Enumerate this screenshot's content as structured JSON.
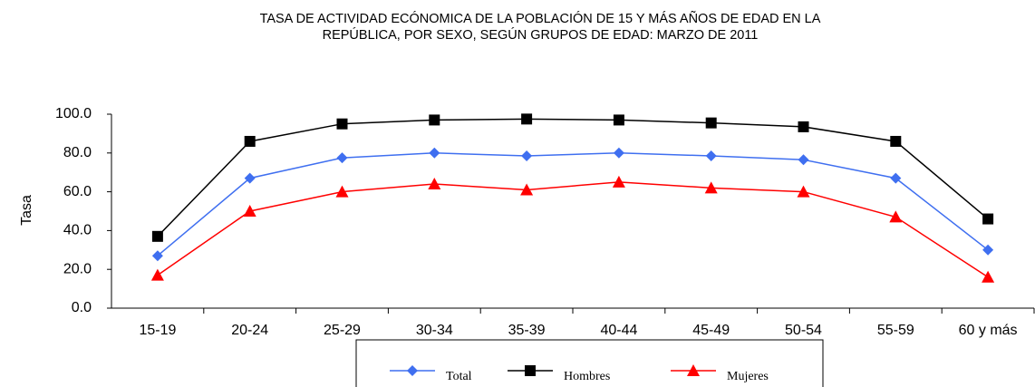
{
  "chart_data": {
    "type": "line",
    "title": "TASA DE ACTIVIDAD ECÓNOMICA DE LA POBLACIÓN DE 15 Y MÁS AÑOS DE EDAD EN LA",
    "subtitle": "REPÚBLICA, POR SEXO, SEGÚN GRUPOS DE EDAD: MARZO DE 2011",
    "y_label": "Tasa",
    "categories": [
      "15-19",
      "20-24",
      "25-29",
      "30-34",
      "35-39",
      "40-44",
      "45-49",
      "50-54",
      "55-59",
      "60 y más"
    ],
    "series": [
      {
        "name": "Total",
        "color": "#3f6ff0",
        "marker": "diamond",
        "values": [
          27,
          67,
          77.5,
          80,
          78.5,
          80,
          78.5,
          76.5,
          67,
          30
        ]
      },
      {
        "name": "Hombres",
        "color": "#000000",
        "marker": "square",
        "values": [
          37,
          86,
          95,
          97,
          97.5,
          97,
          95.5,
          93.5,
          86,
          46
        ]
      },
      {
        "name": "Mujeres",
        "color": "#ff0000",
        "marker": "triangle",
        "values": [
          17,
          50,
          60,
          64,
          61,
          65,
          62,
          60,
          47,
          16
        ]
      }
    ],
    "ylim": [
      0,
      100
    ],
    "yticks": [
      {
        "value": 0,
        "label": "0.0"
      },
      {
        "value": 20,
        "label": "20.0"
      },
      {
        "value": 40,
        "label": "40.0"
      },
      {
        "value": 60,
        "label": "60.0"
      },
      {
        "value": 80,
        "label": "80.0"
      },
      {
        "value": 100,
        "label": "100.0"
      }
    ],
    "grid": false,
    "legend": "bottom"
  }
}
